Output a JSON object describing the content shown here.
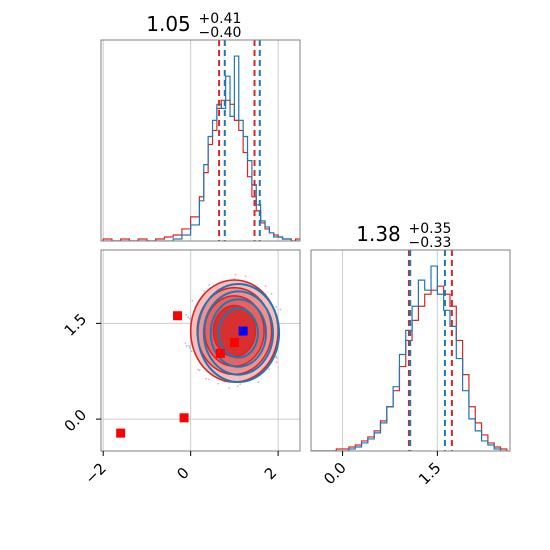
{
  "colors": {
    "red": "#d62728",
    "blue": "#1f77b4",
    "grid": "#cccccc",
    "frame": "#808080",
    "fill_red": "#f08080",
    "marker_blue": "#0000ff",
    "marker_red": "#ff0000"
  },
  "chart_data": [
    {
      "type": "histogram",
      "panel": "top-left",
      "title": {
        "base": "1.05",
        "sup": "+0.41",
        "sub": "−0.40"
      },
      "xlim": [
        -2.05,
        2.5
      ],
      "ylim": [
        0,
        1.0
      ],
      "grid": true,
      "vlines": {
        "red": [
          0.65,
          1.46
        ],
        "blue": [
          0.78,
          1.58
        ]
      },
      "bins": [
        -2.0,
        -1.8,
        -1.6,
        -1.4,
        -1.2,
        -1.0,
        -0.8,
        -0.6,
        -0.4,
        -0.2,
        0.0,
        0.2,
        0.3,
        0.4,
        0.5,
        0.6,
        0.7,
        0.8,
        0.9,
        1.0,
        1.1,
        1.2,
        1.3,
        1.4,
        1.5,
        1.6,
        1.7,
        1.8,
        1.9,
        2.0,
        2.1,
        2.2,
        2.3,
        2.4,
        2.5
      ],
      "series": [
        {
          "color": "red",
          "values": [
            0.01,
            0.0,
            0.01,
            0.0,
            0.01,
            0.0,
            0.01,
            0.02,
            0.03,
            0.06,
            0.12,
            0.22,
            0.34,
            0.48,
            0.55,
            0.66,
            0.7,
            0.7,
            0.68,
            0.6,
            0.55,
            0.44,
            0.32,
            0.22,
            0.15,
            0.09,
            0.06,
            0.04,
            0.03,
            0.02,
            0.01,
            0.01,
            0.0,
            0.01
          ]
        },
        {
          "color": "blue",
          "values": [
            0.0,
            0.0,
            0.0,
            0.0,
            0.0,
            0.0,
            0.0,
            0.0,
            0.01,
            0.03,
            0.08,
            0.2,
            0.38,
            0.52,
            0.6,
            0.68,
            0.66,
            0.82,
            0.62,
            0.92,
            0.6,
            0.52,
            0.4,
            0.28,
            0.18,
            0.1,
            0.07,
            0.04,
            0.02,
            0.02,
            0.01,
            0.01,
            0.0,
            0.0
          ]
        }
      ]
    },
    {
      "type": "scatter-contour",
      "panel": "bottom-left",
      "xlim": [
        -2.05,
        2.5
      ],
      "ylim": [
        -0.5,
        2.65
      ],
      "grid": true,
      "xticks": [
        "−2",
        "0",
        "2"
      ],
      "xtick_values": [
        -2,
        0,
        2
      ],
      "yticks": [
        "0.0",
        "1.5"
      ],
      "ytick_values": [
        0.0,
        1.5
      ],
      "contour_center": [
        1.0,
        1.38
      ],
      "contour_radii": [
        [
          1.0,
          0.8
        ],
        [
          0.85,
          0.68
        ],
        [
          0.68,
          0.55
        ],
        [
          0.48,
          0.4
        ]
      ],
      "red_points": [
        [
          -1.6,
          -0.22
        ],
        [
          -0.3,
          1.62
        ],
        [
          -0.15,
          0.02
        ],
        [
          0.68,
          1.03
        ],
        [
          1.0,
          1.2
        ]
      ],
      "blue_points": [
        [
          1.2,
          1.38
        ]
      ]
    },
    {
      "type": "histogram",
      "panel": "bottom-right",
      "title": {
        "base": "1.38",
        "sup": "+0.35",
        "sub": "−0.33"
      },
      "xlim": [
        -0.5,
        2.65
      ],
      "ylim": [
        0,
        1.0
      ],
      "grid": true,
      "xticks": [
        "0.0",
        "1.5"
      ],
      "xtick_values": [
        0.0,
        1.5
      ],
      "vlines": {
        "red": [
          1.05,
          1.73
        ],
        "blue": [
          1.07,
          1.62
        ]
      },
      "bins": [
        -0.5,
        -0.4,
        -0.3,
        -0.2,
        -0.1,
        0.0,
        0.1,
        0.2,
        0.3,
        0.4,
        0.5,
        0.6,
        0.7,
        0.8,
        0.9,
        1.0,
        1.1,
        1.2,
        1.3,
        1.4,
        1.5,
        1.6,
        1.7,
        1.8,
        1.9,
        2.0,
        2.1,
        2.2,
        2.3,
        2.4,
        2.5,
        2.6
      ],
      "series": [
        {
          "color": "red",
          "values": [
            0.0,
            0.0,
            0.0,
            0.0,
            0.01,
            0.01,
            0.02,
            0.03,
            0.05,
            0.07,
            0.1,
            0.15,
            0.22,
            0.3,
            0.42,
            0.55,
            0.65,
            0.72,
            0.78,
            0.8,
            0.82,
            0.78,
            0.72,
            0.55,
            0.38,
            0.22,
            0.14,
            0.08,
            0.04,
            0.02,
            0.01
          ]
        },
        {
          "color": "blue",
          "values": [
            0.0,
            0.0,
            0.0,
            0.0,
            0.0,
            0.0,
            0.01,
            0.02,
            0.04,
            0.06,
            0.09,
            0.14,
            0.22,
            0.32,
            0.48,
            0.6,
            0.72,
            0.85,
            0.8,
            0.92,
            0.78,
            0.7,
            0.62,
            0.46,
            0.3,
            0.16,
            0.1,
            0.05,
            0.03,
            0.01,
            0.0
          ]
        }
      ]
    }
  ]
}
